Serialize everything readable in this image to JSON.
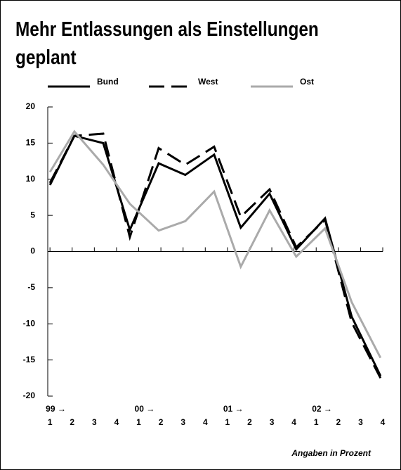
{
  "chart_data": {
    "type": "line",
    "title": "Mehr Entlassungen als Einstellungen geplant",
    "note": "Angaben in Prozent",
    "x": [
      0,
      1.1,
      2.4,
      3.6,
      4.9,
      6.1,
      7.4,
      8.6,
      9.9,
      11.1,
      12.4,
      13.6,
      14.9
    ],
    "series": [
      {
        "name": "Bund",
        "color": "#000000",
        "dash": false,
        "values": [
          9.2,
          16.0,
          15.0,
          3.0,
          12.2,
          10.6,
          13.4,
          3.3,
          8.0,
          0.3,
          4.6,
          -9.0,
          -17.2
        ]
      },
      {
        "name": "West",
        "color": "#000000",
        "dash": true,
        "values": [
          9.5,
          16.0,
          16.3,
          2.0,
          14.3,
          12.0,
          14.5,
          4.8,
          8.6,
          0.6,
          4.4,
          -9.8,
          -17.5
        ]
      },
      {
        "name": "Ost",
        "color": "#aaaaaa",
        "dash": false,
        "values": [
          11.0,
          16.6,
          12.0,
          6.6,
          2.9,
          4.2,
          8.3,
          -2.1,
          5.7,
          -0.7,
          3.2,
          -7.0,
          -14.7
        ]
      }
    ],
    "xlim": [
      -0.1,
      15
    ],
    "xticks": [
      {
        "value": 0,
        "label": "1"
      },
      {
        "value": 1,
        "label": "2"
      },
      {
        "value": 2,
        "label": "3"
      },
      {
        "value": 3,
        "label": "4"
      },
      {
        "value": 4,
        "label": "1"
      },
      {
        "value": 5,
        "label": "2"
      },
      {
        "value": 6,
        "label": "3"
      },
      {
        "value": 7,
        "label": "4"
      },
      {
        "value": 8,
        "label": "1"
      },
      {
        "value": 9,
        "label": "2"
      },
      {
        "value": 10,
        "label": "3"
      },
      {
        "value": 11,
        "label": "4"
      },
      {
        "value": 12,
        "label": "1"
      },
      {
        "value": 13,
        "label": "2"
      },
      {
        "value": 14,
        "label": "3"
      },
      {
        "value": 15,
        "label": "4"
      }
    ],
    "year_ticks": [
      {
        "value": 0,
        "label": "99 →"
      },
      {
        "value": 4,
        "label": "00 →"
      },
      {
        "value": 8,
        "label": "01 →"
      },
      {
        "value": 12,
        "label": "02 →"
      }
    ],
    "ylim": [
      -20,
      20
    ],
    "yticks": [
      20,
      15,
      10,
      5,
      0,
      -5,
      -10,
      -15,
      -20
    ]
  }
}
